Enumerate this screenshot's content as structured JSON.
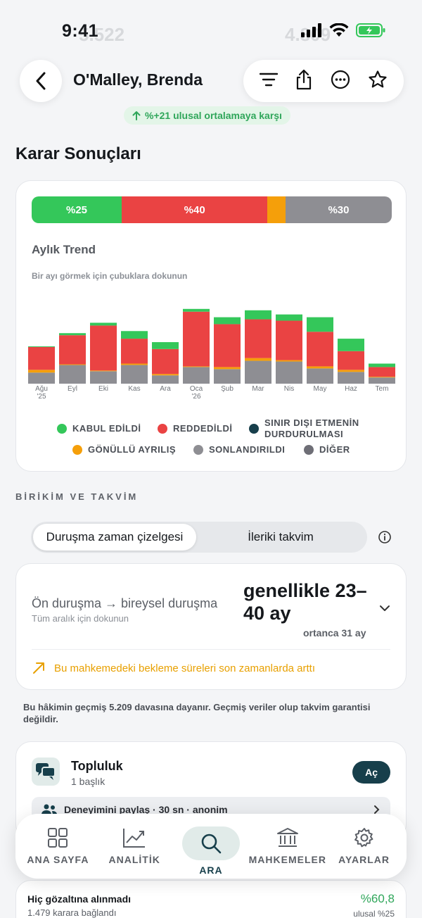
{
  "status_bar": {
    "time": "9:41"
  },
  "background_ghost": {
    "left_value": "5.522",
    "right_value": "4.809"
  },
  "header": {
    "title": "O'Malley, Brenda",
    "national_badge": "%+21 ulusal ortalamaya karşı"
  },
  "decisions": {
    "section_title": "Karar Sonuçları",
    "split": [
      {
        "label": "%25",
        "fraction": 0.25,
        "color": "#34c75a"
      },
      {
        "label": "%40",
        "fraction": 0.405,
        "color": "#ea4343"
      },
      {
        "label": "",
        "fraction": 0.05,
        "color": "#f59f0a"
      },
      {
        "label": "%30",
        "fraction": 0.295,
        "color": "#8e8e93"
      }
    ],
    "trend_title": "Aylık Trend",
    "trend_hint": "Bir ayı görmek için çubuklara dokunun",
    "legend": [
      {
        "label": "KABUL EDİLDİ",
        "color": "#34c75a"
      },
      {
        "label": "REDDEDİLDİ",
        "color": "#ea4343"
      },
      {
        "label": "SINIR DIŞI ETMENİN",
        "label2": "DURDURULMASI",
        "color": "#173f4b"
      },
      {
        "label": "GÖNÜLLÜ AYRILIŞ",
        "color": "#f59f0a"
      },
      {
        "label": "SONLANDIRILDI",
        "color": "#8e8e93"
      },
      {
        "label": "DİĞER",
        "color": "#6e6e76"
      }
    ]
  },
  "chart_data": {
    "type": "bar",
    "stacked": true,
    "categories": [
      "Ağu '25",
      "Eyl",
      "Eki",
      "Kas",
      "Ara",
      "Oca '26",
      "Şub",
      "Mar",
      "Nis",
      "May",
      "Haz",
      "Tem"
    ],
    "series": [
      {
        "name": "SONLANDIRILDI",
        "color": "#8e8e93",
        "values": [
          16,
          27,
          18,
          27,
          12,
          24,
          21,
          33,
          32,
          22,
          17,
          9
        ]
      },
      {
        "name": "GÖNÜLLÜ AYRILIŞ",
        "color": "#f59f0a",
        "values": [
          4,
          1,
          1,
          2,
          2,
          1,
          3,
          4,
          2,
          3,
          3,
          1
        ]
      },
      {
        "name": "REDDEDİLDİ",
        "color": "#ea4343",
        "values": [
          33,
          42,
          65,
          36,
          36,
          79,
          62,
          56,
          57,
          50,
          27,
          14
        ]
      },
      {
        "name": "KABUL EDİLDİ",
        "color": "#34c75a",
        "values": [
          1,
          3,
          4,
          11,
          10,
          4,
          10,
          13,
          9,
          21,
          18,
          5
        ]
      }
    ],
    "ylim": [
      0,
      120
    ]
  },
  "calendar": {
    "section_title": "BİRİKİM VE TAKVİM",
    "tabs": [
      "Duruşma zaman çizelgesi",
      "İleriki takvim"
    ],
    "timeline_label": "Ön duruşma → bireysel duruşma",
    "timeline_hint": "Tüm aralık için dokunun",
    "timeline_value": "genellikle 23–40 ay",
    "timeline_median": "ortanca 31 ay",
    "warning": "Bu mahkemedeki bekleme süreleri son zamanlarda arttı",
    "disclaimer": "Bu hâkimin geçmiş 5.209 davasına dayanır. Geçmiş veriler olup takvim garantisi değildir."
  },
  "community": {
    "title": "Topluluk",
    "subtitle": "1 başlık",
    "open_label": "Aç",
    "row": "Deneyimini paylaş · 30 sn · anonim"
  },
  "tabbar": {
    "items": [
      {
        "label": "ANA SAYFA",
        "icon": "grid-icon"
      },
      {
        "label": "ANALİTİK",
        "icon": "chart-icon"
      },
      {
        "label": "ARA",
        "icon": "search-icon"
      },
      {
        "label": "MAHKEMELER",
        "icon": "courthouse-icon"
      },
      {
        "label": "AYARLAR",
        "icon": "gear-icon"
      }
    ],
    "active_index": 2
  },
  "detention": {
    "title": "Hiç gözaltına alınmadı",
    "subtitle": "1.479 karara bağlandı",
    "value": "%60,8",
    "note": "ulusal %25"
  }
}
